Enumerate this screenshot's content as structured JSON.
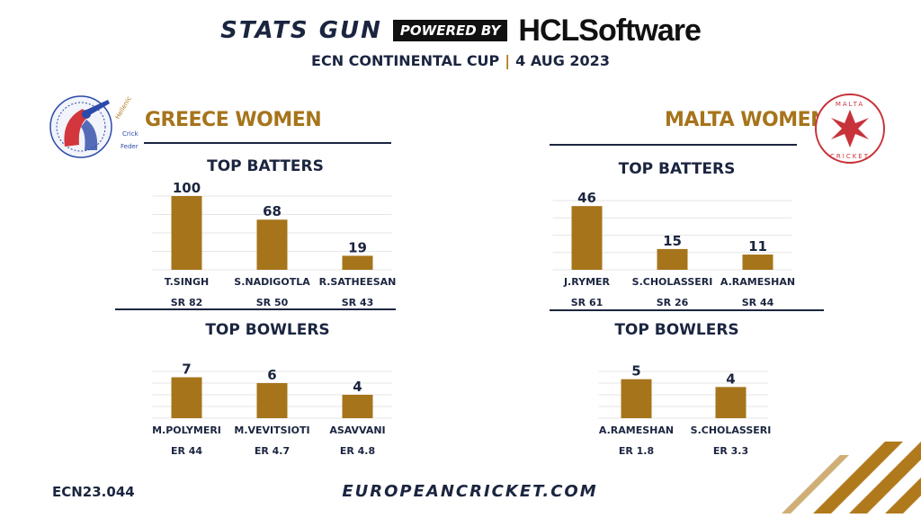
{
  "header": {
    "brand_left": "STATS GUN",
    "powered_by": "POWERED BY",
    "brand_right": "HCLSoftware",
    "event": "ECN CONTINENTAL CUP",
    "date": "4 AUG 2023"
  },
  "teams": {
    "left": {
      "name": "GREECE WOMEN"
    },
    "right": {
      "name": "MALTA WOMEN"
    }
  },
  "colors": {
    "bar": "#a6741b",
    "navy": "#1b2540",
    "accent": "#b07a1c",
    "malta_red": "#c8323a"
  },
  "footer": {
    "code": "ECN23.044",
    "site": "EUROPEANCRICKET.COM"
  },
  "chart_data": [
    {
      "type": "bar",
      "title": "TOP BATTERS",
      "team": "GREECE WOMEN",
      "categories": [
        "T.SINGH",
        "S.NADIGOTLA",
        "R.SATHEESAN"
      ],
      "values": [
        100,
        68,
        19
      ],
      "sublabels": [
        "SR 82",
        "SR 50",
        "SR 43"
      ],
      "ylim": [
        0,
        100
      ],
      "grid": true
    },
    {
      "type": "bar",
      "title": "TOP BOWLERS",
      "team": "GREECE WOMEN",
      "categories": [
        "M.POLYMERI",
        "M.VEVITSIOTI",
        "ASAVVANI"
      ],
      "values": [
        7,
        6,
        4
      ],
      "sublabels": [
        "ER 44",
        "ER 4.7",
        "ER 4.8"
      ],
      "ylim": [
        0,
        8
      ],
      "grid": true
    },
    {
      "type": "bar",
      "title": "TOP BATTERS",
      "team": "MALTA WOMEN",
      "categories": [
        "J.RYMER",
        "S.CHOLASSERI",
        "A.RAMESHAN"
      ],
      "values": [
        46,
        15,
        11
      ],
      "sublabels": [
        "SR 61",
        "SR 26",
        "SR 44"
      ],
      "ylim": [
        0,
        50
      ],
      "grid": true
    },
    {
      "type": "bar",
      "title": "TOP BOWLERS",
      "team": "MALTA WOMEN",
      "categories": [
        "A.RAMESHAN",
        "S.CHOLASSERI"
      ],
      "values": [
        5,
        4
      ],
      "sublabels": [
        "ER 1.8",
        "ER 3.3"
      ],
      "ylim": [
        0,
        6
      ],
      "grid": true
    }
  ]
}
